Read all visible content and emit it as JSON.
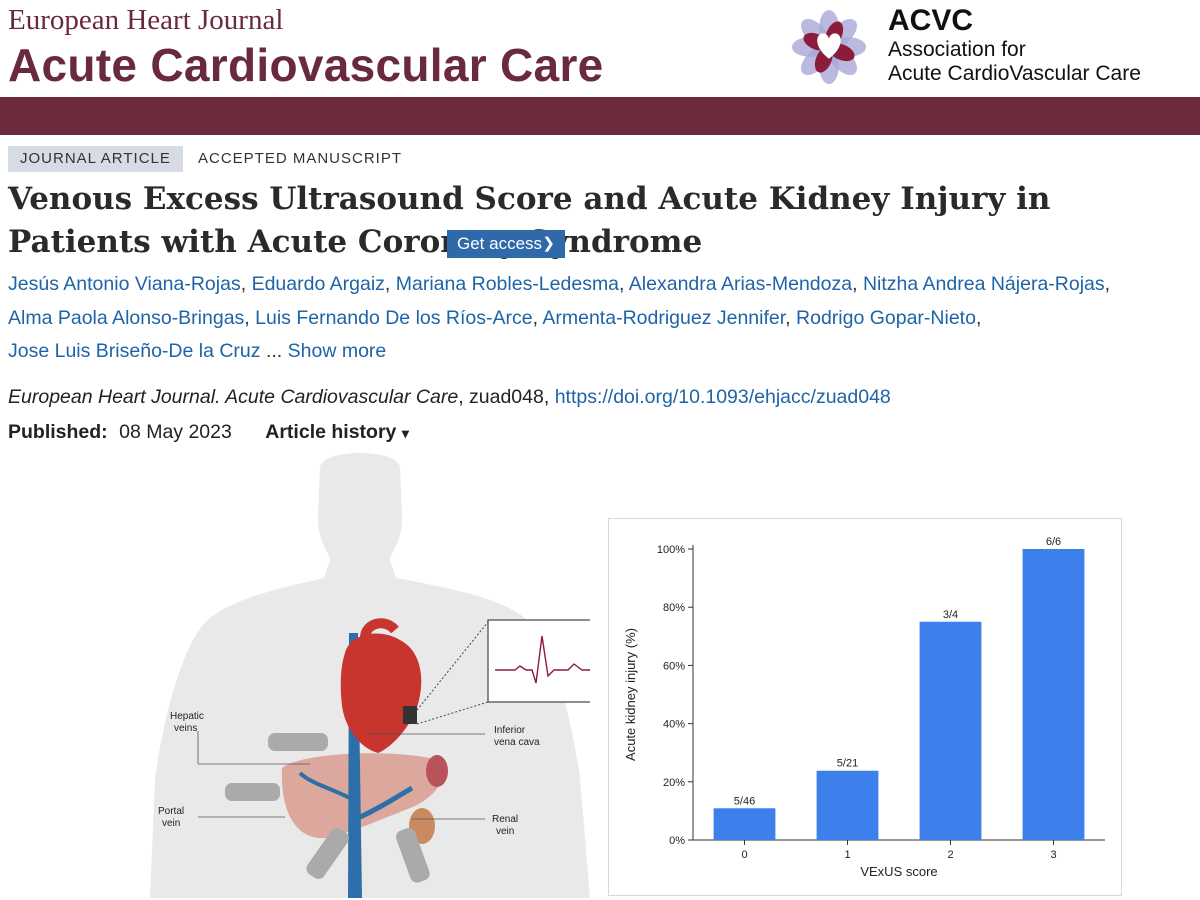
{
  "journal": {
    "name_line1": "European Heart Journal",
    "name_line2": "Acute Cardiovascular Care"
  },
  "association": {
    "acronym": "ACVC",
    "name_line1": "Association for",
    "name_line2": "Acute CardioVascular Care",
    "logo_icon": "heart-flower-logo"
  },
  "colors": {
    "brand": "#6b2b3d",
    "link": "#1f63a8",
    "button": "#3069a9",
    "bar": "#3d80ec"
  },
  "tags": {
    "type": "JOURNAL ARTICLE",
    "status": "ACCEPTED MANUSCRIPT"
  },
  "article": {
    "title": "Venous Excess Ultrasound Score and Acute Kidney Injury in Patients with Acute Coronary Syndrome",
    "get_access": "Get access",
    "authors": [
      "Jesús Antonio Viana-Rojas",
      "Eduardo Argaiz",
      "Mariana Robles-Ledesma",
      "Alexandra Arias-Mendoza",
      "Nitzha Andrea Nájera-Rojas",
      "Alma Paola Alonso-Bringas",
      "Luis Fernando De los Ríos-Arce",
      "Armenta-Rodriguez Jennifer",
      "Rodrigo Gopar-Nieto",
      "Jose Luis Briseño-De la Cruz"
    ],
    "ellipsis": "...",
    "show_more": "Show more",
    "citation_journal": "European Heart Journal. Acute Cardiovascular Care",
    "citation_id": ", zuad048, ",
    "doi": "https://doi.org/10.1093/ehjacc/zuad048",
    "published_label": "Published:",
    "published_date": "08 May 2023",
    "history_label": "Article history"
  },
  "illustration": {
    "labels": {
      "hepatic": [
        "Hepatic",
        "veins"
      ],
      "portal": [
        "Portal",
        "vein"
      ],
      "ivc": [
        "Inferior",
        "vena cava"
      ],
      "renal": [
        "Renal",
        "vein"
      ]
    }
  },
  "chart_data": {
    "type": "bar",
    "categories": [
      "0",
      "1",
      "2",
      "3"
    ],
    "values": [
      10.9,
      23.8,
      75,
      100
    ],
    "data_labels": [
      "5/46",
      "5/21",
      "3/4",
      "6/6"
    ],
    "xlabel": "VExUS score",
    "ylabel": "Acute kidney injury (%)",
    "ylim": [
      0,
      100
    ],
    "yticks": [
      0,
      20,
      40,
      60,
      80,
      100
    ],
    "ytick_labels": [
      "0%",
      "20%",
      "40%",
      "60%",
      "80%",
      "100%"
    ],
    "grid": false,
    "legend": "none"
  }
}
